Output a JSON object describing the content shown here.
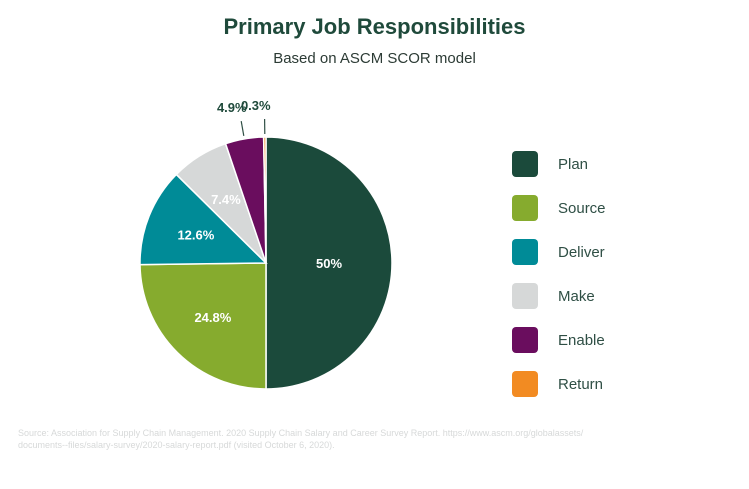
{
  "chart_data": {
    "type": "pie",
    "title": "Primary Job Responsibilities",
    "subtitle": "Based on ASCM SCOR model",
    "slices": [
      {
        "label": "Plan",
        "value": 50,
        "display": "50%",
        "color": "#1b4a3b",
        "label_color": "#ffffff"
      },
      {
        "label": "Source",
        "value": 24.8,
        "display": "24.8%",
        "color": "#86ab2e",
        "label_color": "#ffffff"
      },
      {
        "label": "Deliver",
        "value": 12.6,
        "display": "12.6%",
        "color": "#008b97",
        "label_color": "#ffffff"
      },
      {
        "label": "Make",
        "value": 7.4,
        "display": "7.4%",
        "color": "#d6d8d8",
        "label_color": "#ffffff"
      },
      {
        "label": "Enable",
        "value": 4.9,
        "display": "4.9%",
        "color": "#6a0d5e",
        "label_color": "#1f4a3b"
      },
      {
        "label": "Return",
        "value": 0.3,
        "display": "0.3%",
        "color": "#f28b22",
        "label_color": "#1f4a3b"
      }
    ],
    "legend_position": "right"
  },
  "source": {
    "line1": "Source: Association for Supply Chain Management. 2020 Supply Chain Salary and Career Survey Report. https://www.ascm.org/globalassets/",
    "line2": "documents--files/salary-survey/2020-salary-report.pdf (visited October 6, 2020)."
  }
}
